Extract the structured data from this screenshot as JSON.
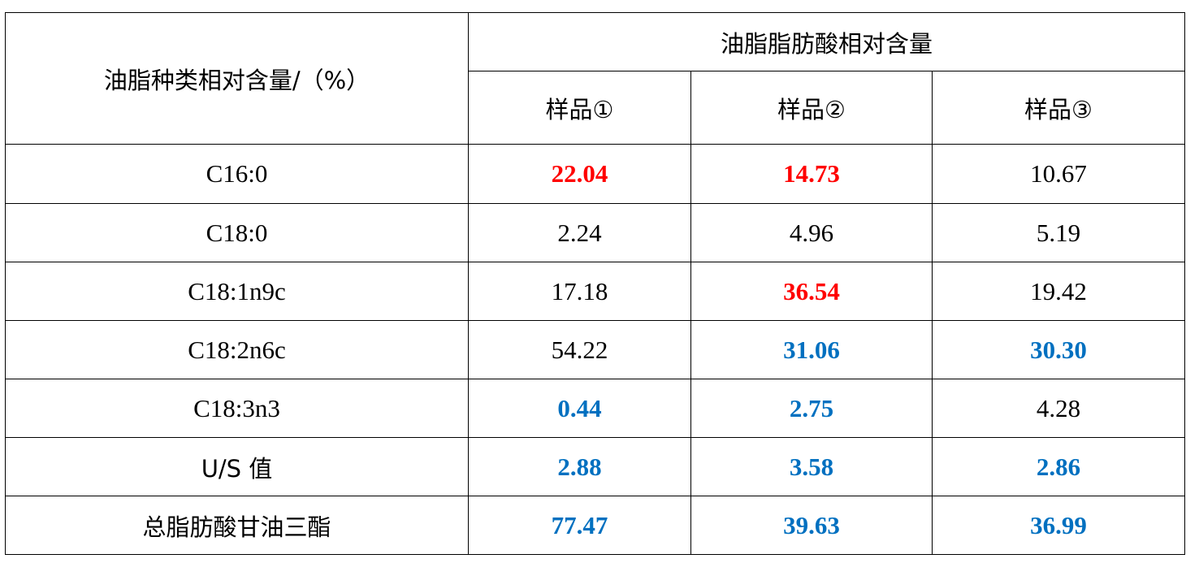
{
  "header": {
    "row_header": "油脂种类相对含量/（%）",
    "group_header": "油脂脂肪酸相对含量",
    "samples": [
      "样品①",
      "样品②",
      "样品③"
    ]
  },
  "rows": [
    {
      "label": "C16:0",
      "values": [
        "22.04",
        "14.73",
        "10.67"
      ],
      "styles": [
        "red",
        "red",
        "plain"
      ]
    },
    {
      "label": "C18:0",
      "values": [
        "2.24",
        "4.96",
        "5.19"
      ],
      "styles": [
        "plain",
        "plain",
        "plain"
      ]
    },
    {
      "label": "C18:1n9c",
      "values": [
        "17.18",
        "36.54",
        "19.42"
      ],
      "styles": [
        "plain",
        "red",
        "plain"
      ]
    },
    {
      "label": "C18:2n6c",
      "values": [
        "54.22",
        "31.06",
        "30.30"
      ],
      "styles": [
        "plain",
        "blue",
        "blue"
      ]
    },
    {
      "label": "C18:3n3",
      "values": [
        "0.44",
        "2.75",
        "4.28"
      ],
      "styles": [
        "blue",
        "blue",
        "plain"
      ]
    },
    {
      "label": "U/S 值",
      "values": [
        "2.88",
        "3.58",
        "2.86"
      ],
      "styles": [
        "blue",
        "blue",
        "blue"
      ]
    },
    {
      "label": "总脂肪酸甘油三酯",
      "values": [
        "77.47",
        "39.63",
        "36.99"
      ],
      "styles": [
        "blue",
        "blue",
        "blue"
      ]
    }
  ],
  "colors": {
    "red": "#ff0000",
    "blue": "#0070c0",
    "plain": "#000000"
  }
}
